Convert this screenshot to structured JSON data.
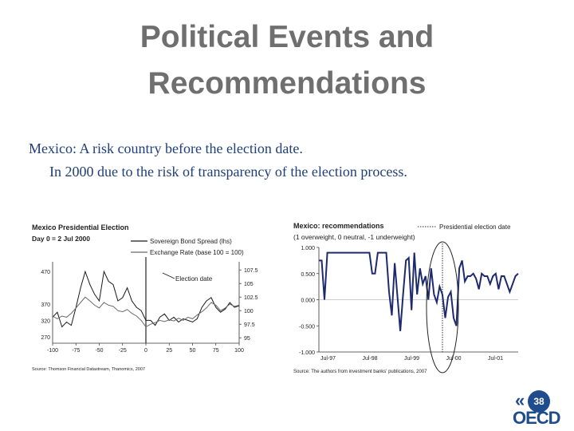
{
  "slide": {
    "title_line1": "Political Events and",
    "title_line2": "Recommendations",
    "line1": "Mexico:  A risk country before the election date.",
    "line2": "In 2000 due to the risk of transparency of the election process.",
    "page_number": "38",
    "logo_text": "OECD"
  },
  "chart_data": [
    {
      "type": "line",
      "title": "Mexico Presidential Election",
      "subtitle": "Day 0 = 2 Jul 2000",
      "annotation": "Election date",
      "source": "Source: Thomson Financial Datastream, Thanomics, 2007",
      "x": {
        "min": -100,
        "max": 100,
        "ticks": [
          -100,
          -75,
          -50,
          -25,
          0,
          25,
          50,
          75,
          100
        ]
      },
      "y_left": {
        "ticks": [
          470,
          370,
          320,
          270
        ]
      },
      "y_right": {
        "ticks": [
          "107.5",
          "105",
          "102.5",
          "100",
          "97.5",
          "95"
        ]
      },
      "series": [
        {
          "name": "Sovereign Bond Spread (lhs)",
          "color": "#1a1a1a",
          "x": [
            -100,
            -95,
            -90,
            -85,
            -80,
            -75,
            -70,
            -65,
            -60,
            -55,
            -50,
            -45,
            -40,
            -35,
            -30,
            -25,
            -20,
            -15,
            -10,
            -5,
            0,
            5,
            10,
            15,
            20,
            25,
            30,
            35,
            40,
            45,
            50,
            55,
            60,
            65,
            70,
            75,
            80,
            85,
            90,
            95,
            100
          ],
          "values": [
            330,
            345,
            300,
            315,
            305,
            360,
            420,
            470,
            430,
            400,
            380,
            470,
            440,
            430,
            380,
            390,
            420,
            380,
            360,
            350,
            320,
            320,
            305,
            330,
            340,
            320,
            330,
            315,
            325,
            320,
            315,
            325,
            360,
            380,
            390,
            360,
            345,
            355,
            375,
            360,
            365
          ]
        },
        {
          "name": "Exchange Rate (base 100 = 100)",
          "color": "#6a6a6a",
          "x": [
            -100,
            -95,
            -90,
            -85,
            -80,
            -75,
            -70,
            -65,
            -60,
            -55,
            -50,
            -45,
            -40,
            -35,
            -30,
            -25,
            -20,
            -15,
            -10,
            -5,
            0,
            5,
            10,
            15,
            20,
            25,
            30,
            35,
            40,
            45,
            50,
            55,
            60,
            65,
            70,
            75,
            80,
            85,
            90,
            95,
            100
          ],
          "values": [
            99,
            98.5,
            99,
            98.8,
            99.5,
            100.5,
            101.5,
            102.5,
            101.8,
            101,
            100.5,
            101.5,
            101,
            100.8,
            100,
            99.8,
            100.2,
            99.5,
            99,
            98.2,
            97,
            97.5,
            97.8,
            98.2,
            98,
            98.3,
            98.1,
            98.6,
            98.2,
            98.8,
            98.5,
            99.2,
            99.8,
            100.5,
            101.5,
            101,
            100,
            100.5,
            101.2,
            100.8,
            101
          ]
        }
      ]
    },
    {
      "type": "line",
      "title": "Mexico: recommendations",
      "subtitle": "(1 overweight, 0 neutral, -1 underweight)",
      "legend": "Presidential election date",
      "source": "Source: The authors from investment banks' publications, 2007",
      "y_axis": {
        "min": -1,
        "max": 1,
        "ticks": [
          "1.000",
          "0.500",
          "0.000",
          "-0.500",
          "-1.000"
        ]
      },
      "x_labels": [
        "Jul-97",
        "Jul-98",
        "Jul-99",
        "Jul-00",
        "Jul-01"
      ],
      "series": [
        {
          "name": "Recommendation",
          "color": "#1d2a6e",
          "values": [
            0.75,
            0.75,
            0.0,
            0.9,
            0.9,
            0.9,
            0.9,
            0.9,
            0.9,
            0.9,
            0.9,
            0.9,
            0.9,
            0.9,
            0.9,
            0.9,
            0.9,
            0.9,
            0.9,
            0.5,
            0.5,
            0.9,
            0.9,
            0.9,
            0.9,
            0.15,
            -0.3,
            0.7,
            0.05,
            -0.6,
            0.1,
            0.75,
            0.8,
            -0.2,
            0.9,
            0.1,
            0.6,
            0.3,
            0.45,
            0.0,
            0.6,
            0.1,
            -0.05,
            0.25,
            0.1,
            -0.35,
            0.05,
            0.15,
            -0.35,
            -0.5,
            0.6,
            0.75,
            0.35,
            0.45,
            0.45,
            0.5,
            0.4,
            0.2,
            0.5,
            0.45,
            0.45,
            0.3,
            0.45,
            0.5,
            0.2,
            0.45,
            0.45,
            0.3,
            0.15,
            0.3,
            0.45,
            0.5
          ]
        }
      ]
    }
  ]
}
